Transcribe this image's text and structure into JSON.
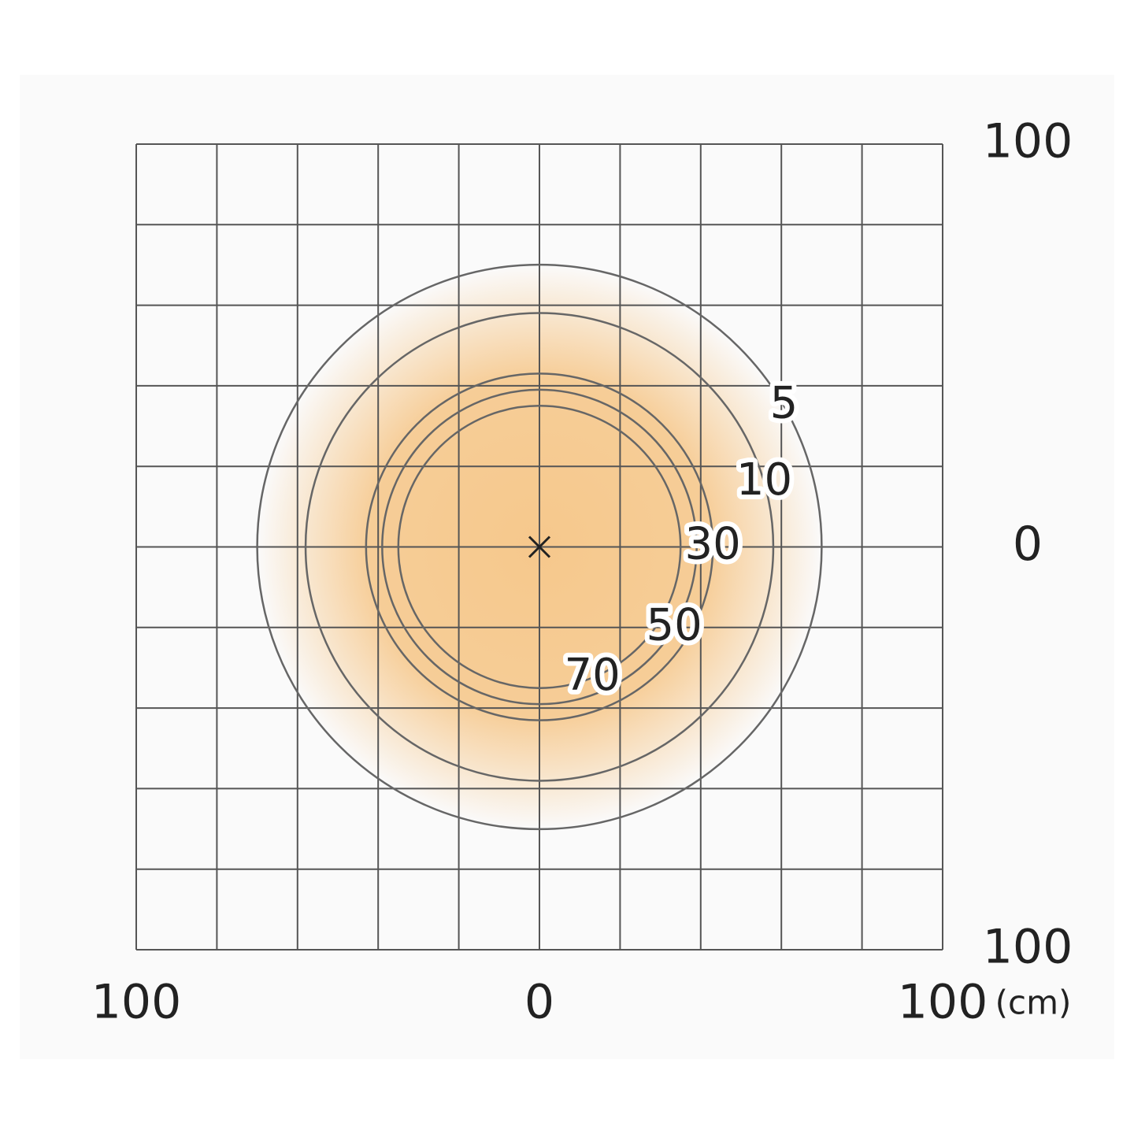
{
  "chart_data": {
    "type": "contour",
    "xlim": [
      -100,
      100
    ],
    "ylim": [
      -100,
      100
    ],
    "xticks": [
      {
        "value": -100,
        "label": "100"
      },
      0,
      100
    ],
    "yticks": [
      {
        "value": -100,
        "label": "100"
      },
      0,
      100
    ],
    "grid": [
      -100,
      -80,
      -60,
      -40,
      -20,
      0,
      20,
      40,
      60,
      80,
      100
    ],
    "unit": "(cm)",
    "color": "#f6c88c",
    "contours": [
      {
        "level": 5,
        "radius": 70
      },
      {
        "level": 10,
        "radius": 58
      },
      {
        "level": 30,
        "radius": 43
      },
      {
        "level": 50,
        "radius": 39
      },
      {
        "level": 70,
        "radius": 35
      }
    ]
  }
}
